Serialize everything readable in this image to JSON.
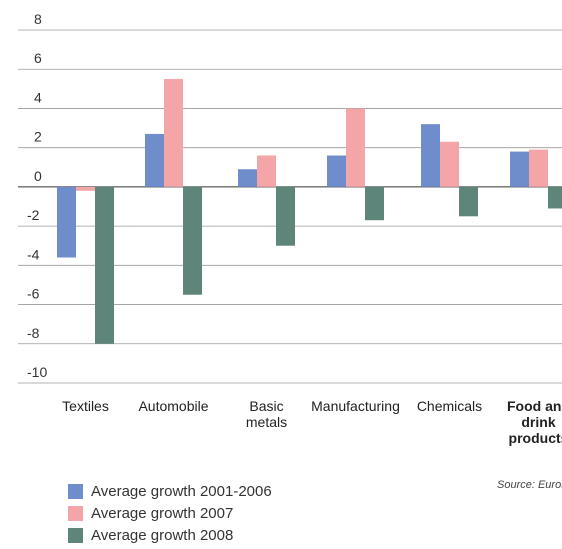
{
  "chart_data": {
    "type": "bar",
    "categories": [
      {
        "lines": [
          "Textiles"
        ],
        "bold": false
      },
      {
        "lines": [
          "Automobile"
        ],
        "bold": false
      },
      {
        "lines": [
          "Basic",
          "metals"
        ],
        "bold": false
      },
      {
        "lines": [
          "Manufacturing"
        ],
        "bold": false
      },
      {
        "lines": [
          "Chemicals"
        ],
        "bold": false
      },
      {
        "lines": [
          "Food and",
          "drink",
          "products"
        ],
        "bold": true
      }
    ],
    "series": [
      {
        "name": "Average growth 2001-2006",
        "color": "#6f8ccb",
        "values": [
          -3.6,
          2.7,
          0.9,
          1.6,
          3.2,
          1.8
        ]
      },
      {
        "name": "Average growth 2007",
        "color": "#f4a5a8",
        "values": [
          -0.2,
          5.5,
          1.6,
          4.0,
          2.3,
          1.9
        ]
      },
      {
        "name": "Average growth 2008",
        "color": "#5e8579",
        "values": [
          -8.0,
          -5.5,
          -3.0,
          -1.7,
          -1.5,
          -1.1
        ]
      }
    ],
    "ylim": [
      -10,
      8
    ],
    "yticks": [
      "8",
      "6",
      "4",
      "2",
      "0",
      "-2",
      "-4",
      "-6",
      "-8",
      "-10"
    ],
    "grid": true,
    "legend_position": "bottom-left",
    "source": "Source: Eurostat"
  }
}
